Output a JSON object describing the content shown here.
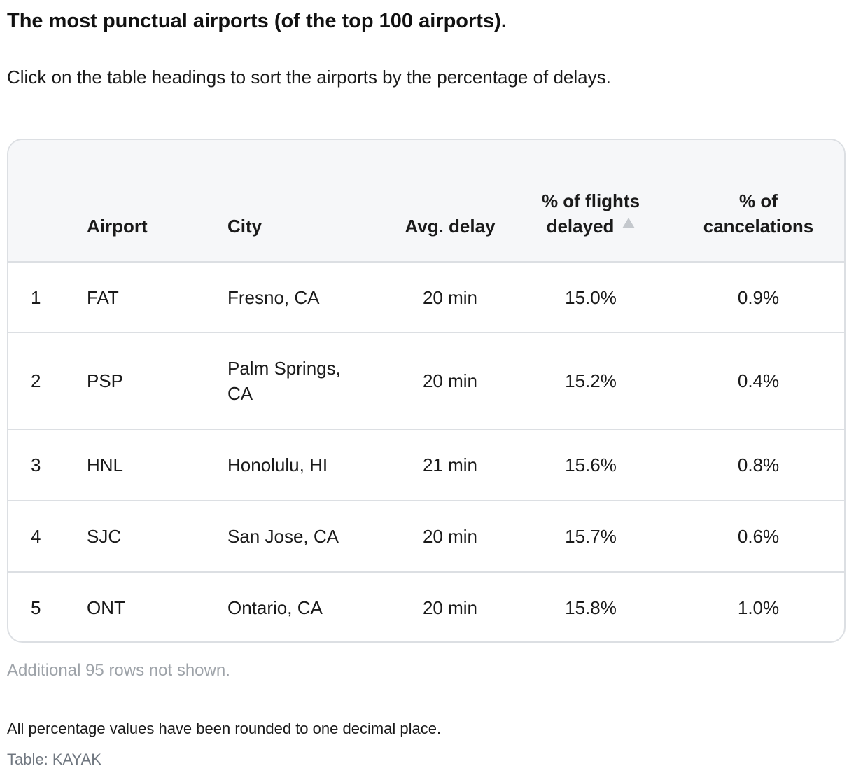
{
  "title": "The most punctual airports (of the top 100 airports).",
  "intro": "Click on the table headings to sort the airports by the percentage of delays.",
  "table": {
    "headers": {
      "rank": "",
      "airport": "Airport",
      "city": "City",
      "avg_delay": "Avg. delay",
      "pct_delayed": "% of flights delayed",
      "pct_cancelations": "% of cancelations"
    },
    "sort": {
      "column": "pct_delayed",
      "direction": "ascending",
      "icon": "sort-ascending-icon"
    },
    "rows": [
      {
        "rank": "1",
        "airport": "FAT",
        "city": "Fresno, CA",
        "avg_delay": "20 min",
        "pct_delayed": "15.0%",
        "pct_cancelations": "0.9%"
      },
      {
        "rank": "2",
        "airport": "PSP",
        "city": "Palm Springs, CA",
        "avg_delay": "20 min",
        "pct_delayed": "15.2%",
        "pct_cancelations": "0.4%"
      },
      {
        "rank": "3",
        "airport": "HNL",
        "city": "Honolulu, HI",
        "avg_delay": "21 min",
        "pct_delayed": "15.6%",
        "pct_cancelations": "0.8%"
      },
      {
        "rank": "4",
        "airport": "SJC",
        "city": "San Jose, CA",
        "avg_delay": "20 min",
        "pct_delayed": "15.7%",
        "pct_cancelations": "0.6%"
      },
      {
        "rank": "5",
        "airport": "ONT",
        "city": "Ontario, CA",
        "avg_delay": "20 min",
        "pct_delayed": "15.8%",
        "pct_cancelations": "1.0%"
      }
    ]
  },
  "rows_not_shown": "Additional 95 rows not shown.",
  "footnote": "All percentage values have been rounded to one decimal place.",
  "source": "Table: KAYAK",
  "colors": {
    "header_background": "#f6f7f9",
    "border": "#dcdfe3",
    "muted_text": "#9ea3a9",
    "source_text": "#707780"
  }
}
